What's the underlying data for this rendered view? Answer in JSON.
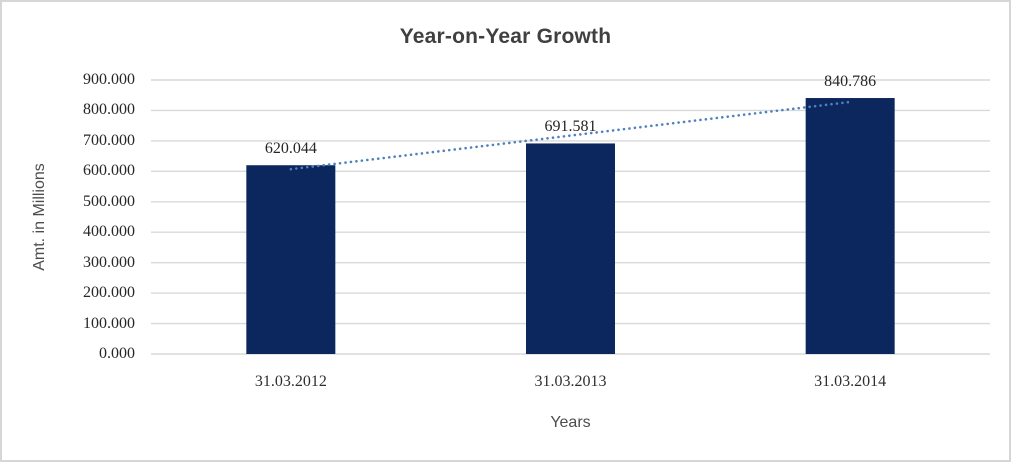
{
  "chart_data": {
    "type": "bar",
    "title": "Year-on-Year Growth",
    "xlabel": "Years",
    "ylabel": "Amt. in Millions",
    "categories": [
      "31.03.2012",
      "31.03.2013",
      "31.03.2014"
    ],
    "values": [
      620.044,
      691.581,
      840.786
    ],
    "value_labels": [
      "620.044",
      "691.581",
      "840.786"
    ],
    "ylim": [
      0,
      900
    ],
    "ytick_step": 100,
    "ytick_labels": [
      "0.000",
      "100.000",
      "200.000",
      "300.000",
      "400.000",
      "500.000",
      "600.000",
      "700.000",
      "800.000",
      "900.000"
    ],
    "grid": "horizontal",
    "legend": "none",
    "trendline": {
      "type": "linear",
      "style": "dotted",
      "color": "#4f81bd"
    },
    "colors": {
      "bar": "#0c265e",
      "gridline": "#d9d9d9",
      "background": "#ffffff",
      "border": "#d6d6d6",
      "title_text": "#404040",
      "tick_text": "#262626",
      "axis_title_text": "#4d4d4d"
    }
  }
}
